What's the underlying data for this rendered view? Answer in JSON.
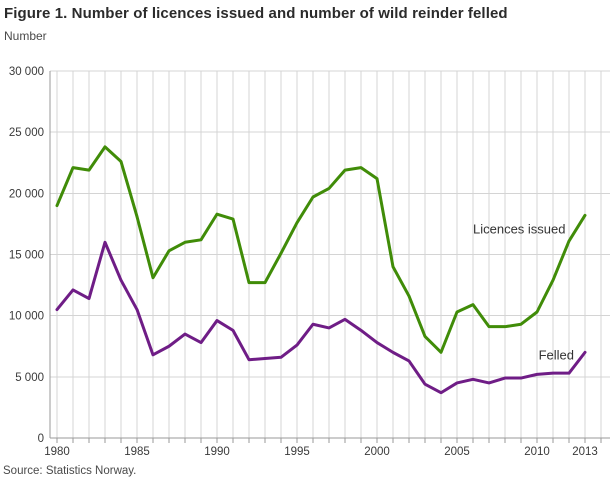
{
  "figure": {
    "title": "Figure 1. Number of licences issued and number of wild reinder felled",
    "unit_label": "Number",
    "source": "Source: Statistics Norway."
  },
  "chart_data": {
    "type": "line",
    "title": "Figure 1. Number of licences issued and number of wild reinder felled",
    "ylabel": "Number",
    "xlabel": "",
    "grid": true,
    "ylim": [
      0,
      30000
    ],
    "ytick_step": 5000,
    "ytick_labels": [
      "0",
      "5 000",
      "10 000",
      "15 000",
      "20 000",
      "25 000",
      "30 000"
    ],
    "xlim": [
      1980,
      2014
    ],
    "xtick_labeled": [
      1980,
      1985,
      1990,
      1995,
      2000,
      2005,
      2010,
      2013
    ],
    "x": [
      1980,
      1981,
      1982,
      1983,
      1984,
      1985,
      1986,
      1987,
      1988,
      1989,
      1990,
      1991,
      1992,
      1993,
      1994,
      1995,
      1996,
      1997,
      1998,
      1999,
      2000,
      2001,
      2002,
      2003,
      2004,
      2005,
      2006,
      2007,
      2008,
      2009,
      2010,
      2011,
      2012,
      2013
    ],
    "series": [
      {
        "name": "Licences issued",
        "color": "#408c08",
        "values": [
          19000,
          22100,
          21900,
          23800,
          22600,
          18100,
          13100,
          15300,
          16000,
          16200,
          18300,
          17900,
          12700,
          12700,
          15100,
          17600,
          19700,
          20400,
          21900,
          22100,
          21200,
          14000,
          11600,
          8300,
          7000,
          10300,
          10900,
          9100,
          9100,
          9300,
          10300,
          12900,
          16100,
          18200
        ]
      },
      {
        "name": "Felled",
        "color": "#6f1d86",
        "values": [
          10500,
          12100,
          11400,
          16000,
          12900,
          10500,
          6800,
          7500,
          8500,
          7800,
          9600,
          8800,
          6400,
          6500,
          6600,
          7600,
          9300,
          9000,
          9700,
          8800,
          7800,
          7000,
          6300,
          4400,
          3700,
          4500,
          4800,
          4500,
          4900,
          4900,
          5200,
          5300,
          5300,
          7000
        ]
      }
    ],
    "annotations": [
      {
        "text": "Licences issued",
        "year": 2006.0,
        "value": 16700,
        "anchor": "start"
      },
      {
        "text": "Felled",
        "year": 2010.1,
        "value": 6400,
        "anchor": "start"
      }
    ],
    "legend_position": "inline-labels"
  }
}
